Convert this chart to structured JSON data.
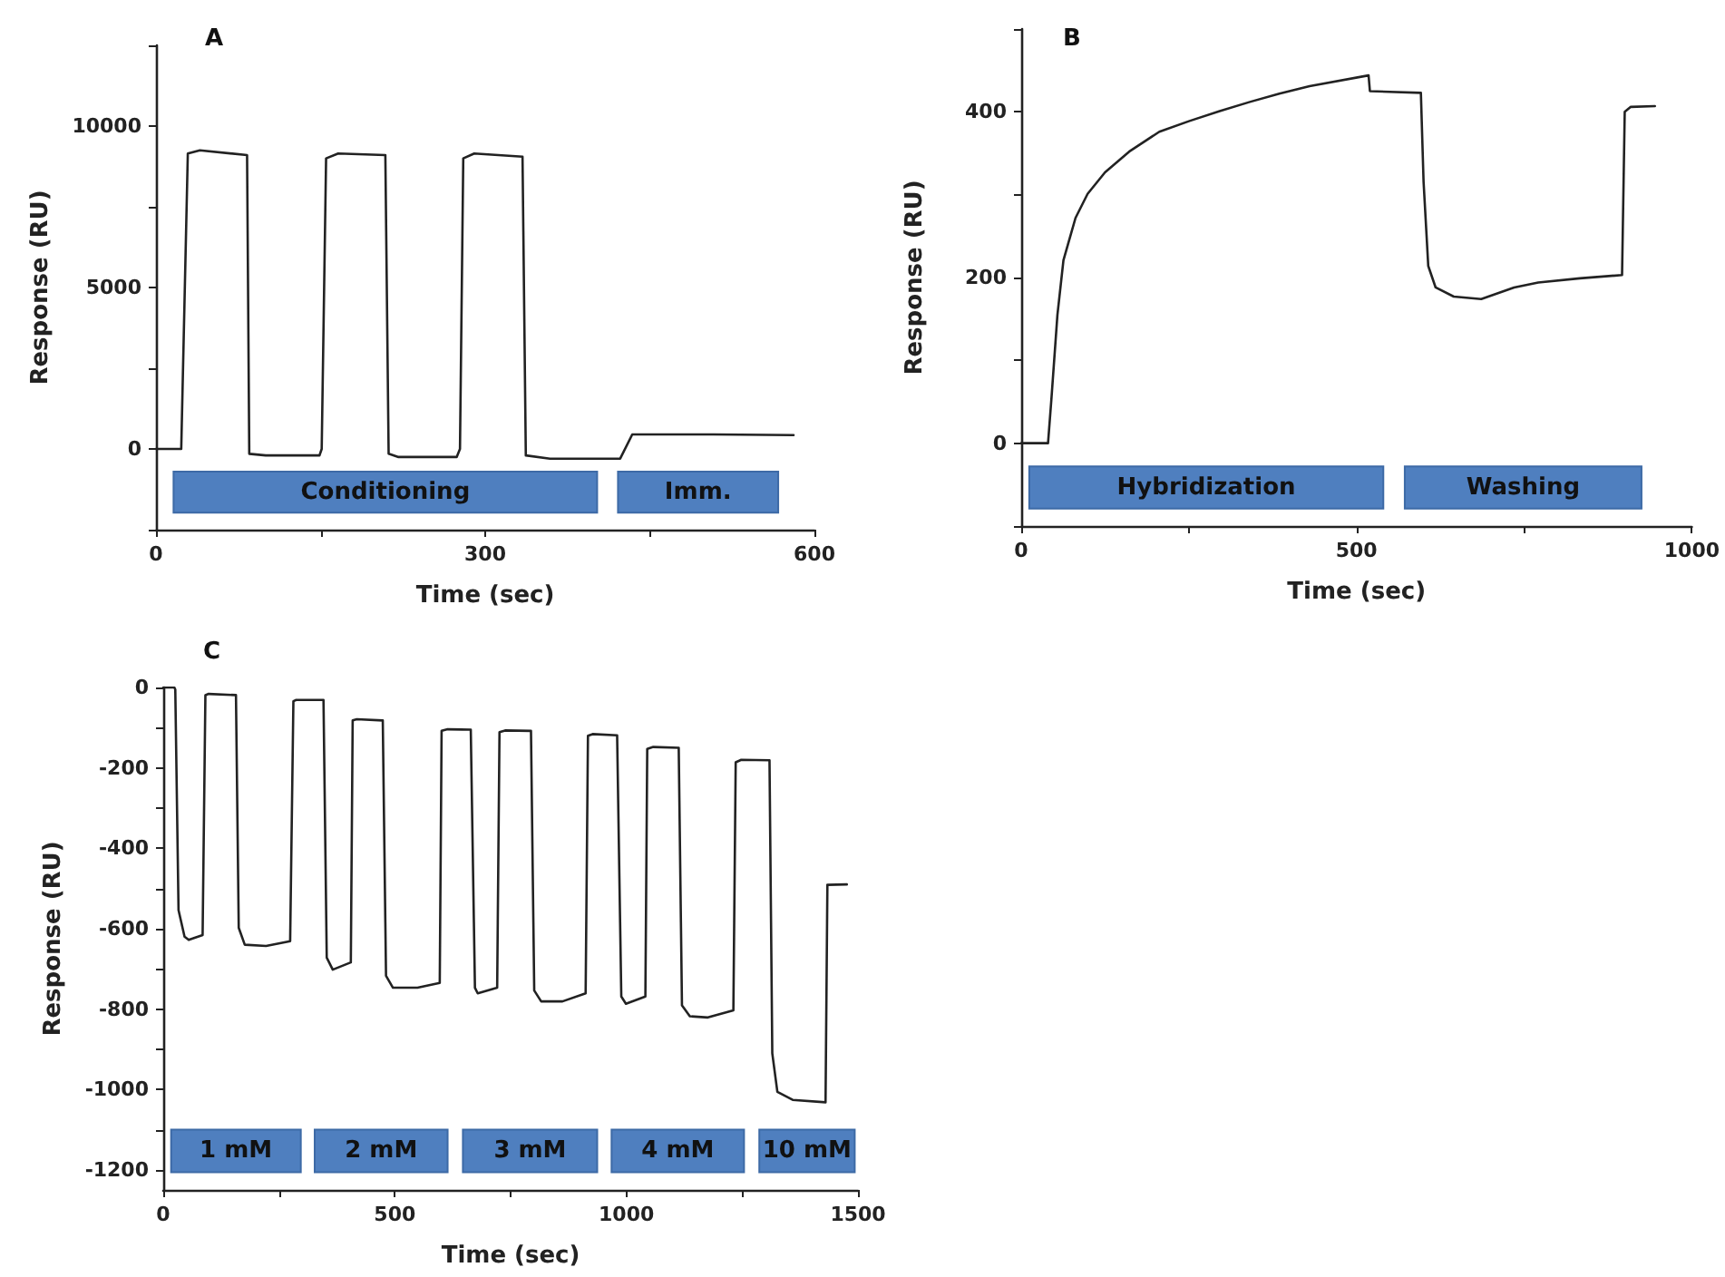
{
  "chart_data": [
    {
      "type": "line",
      "title": "A",
      "xlabel": "Time (sec)",
      "ylabel": "Response (RU)",
      "xlim": [
        0,
        600
      ],
      "xticks": [
        0,
        {
          "value": 150,
          "label": null
        },
        300,
        {
          "value": 450,
          "label": null
        },
        600
      ],
      "ylim": [
        -2500,
        12500
      ],
      "yticks": [
        {
          "value": -2500,
          "label": null
        },
        0,
        {
          "value": 2500,
          "label": null
        },
        5000,
        {
          "value": 7500,
          "label": null
        },
        10000,
        {
          "value": 12500,
          "label": null
        }
      ],
      "grid": false,
      "marker": "none",
      "line_style": "solid",
      "color": "#222222",
      "x": [
        0,
        23,
        29,
        40,
        83,
        85,
        100,
        149,
        151,
        155,
        166,
        209,
        212,
        221,
        274,
        277,
        280,
        290,
        334,
        337,
        359,
        423,
        434,
        508,
        581
      ],
      "values": [
        0,
        0,
        9150,
        9250,
        9100,
        -150,
        -200,
        -200,
        0,
        9000,
        9150,
        9100,
        -150,
        -250,
        -250,
        0,
        9000,
        9150,
        9050,
        -200,
        -300,
        -300,
        450,
        450,
        430
      ],
      "bands": [
        {
          "axis": "x",
          "from": 16,
          "to": 402,
          "label": "Conditioning",
          "color": "#4f7fbf"
        },
        {
          "axis": "x",
          "from": 421,
          "to": 567,
          "label": "Imm.",
          "color": "#4f7fbf"
        }
      ]
    },
    {
      "type": "line",
      "title": "B",
      "xlabel": "Time (sec)",
      "ylabel": "Response (RU)",
      "xlim": [
        0,
        1000
      ],
      "xticks": [
        0,
        {
          "value": 250,
          "label": null
        },
        500,
        {
          "value": 750,
          "label": null
        },
        1000
      ],
      "ylim": [
        -100,
        500
      ],
      "yticks": [
        {
          "value": -100,
          "label": null
        },
        0,
        {
          "value": 100,
          "label": null
        },
        200,
        {
          "value": 300,
          "label": null
        },
        400,
        {
          "value": 500,
          "label": null
        }
      ],
      "grid": false,
      "marker": "none",
      "line_style": "solid",
      "color": "#222222",
      "x": [
        0,
        40,
        45,
        54,
        63,
        81,
        99,
        125,
        161,
        206,
        251,
        296,
        341,
        385,
        430,
        518,
        520,
        596,
        600,
        607,
        618,
        645,
        686,
        735,
        771,
        833,
        896,
        900,
        909,
        945
      ],
      "values": [
        0,
        0,
        53,
        155,
        221,
        272,
        301,
        327,
        352,
        376,
        389,
        401,
        412,
        422,
        431,
        444,
        425,
        423,
        316,
        214,
        188,
        177,
        174,
        188,
        194,
        199,
        203,
        400,
        406,
        407
      ],
      "bands": [
        {
          "axis": "x",
          "from": 12,
          "to": 540,
          "label": "Hybridization",
          "color": "#4f7fbf"
        },
        {
          "axis": "x",
          "from": 572,
          "to": 925,
          "label": "Washing",
          "color": "#4f7fbf"
        }
      ]
    },
    {
      "type": "line",
      "title": "C",
      "xlabel": "Time (sec)",
      "ylabel": "Response (RU)",
      "xlim": [
        0,
        1500
      ],
      "xticks": [
        0,
        {
          "value": 250,
          "label": null
        },
        500,
        {
          "value": 750,
          "label": null
        },
        1000,
        {
          "value": 1250,
          "label": null
        },
        1500
      ],
      "ylim": [
        -1250,
        0
      ],
      "yticks": [
        -1200,
        {
          "value": -1100,
          "label": null
        },
        -1000,
        {
          "value": -900,
          "label": null
        },
        -800,
        {
          "value": -700,
          "label": null
        },
        -600,
        {
          "value": -500,
          "label": null
        },
        -400,
        {
          "value": -300,
          "label": null
        },
        -200,
        {
          "value": -100,
          "label": null
        },
        0
      ],
      "grid": false,
      "marker": "none",
      "line_style": "solid",
      "color": "#222222",
      "x": [
        0,
        24,
        26,
        33,
        46,
        55,
        85,
        91,
        98,
        157,
        163,
        176,
        222,
        274,
        281,
        287,
        346,
        353,
        366,
        405,
        409,
        418,
        474,
        481,
        496,
        549,
        597,
        601,
        614,
        664,
        673,
        679,
        721,
        726,
        738,
        794,
        801,
        816,
        862,
        912,
        917,
        927,
        980,
        989,
        999,
        1041,
        1045,
        1058,
        1113,
        1120,
        1137,
        1176,
        1231,
        1236,
        1248,
        1309,
        1315,
        1326,
        1359,
        1430,
        1434,
        1476
      ],
      "values": [
        0,
        0,
        -5,
        -554,
        -620,
        -628,
        -616,
        -19,
        -16,
        -19,
        -598,
        -640,
        -643,
        -631,
        -34,
        -31,
        -31,
        -672,
        -702,
        -684,
        -82,
        -79,
        -82,
        -717,
        -747,
        -747,
        -735,
        -108,
        -104,
        -105,
        -747,
        -761,
        -747,
        -111,
        -107,
        -108,
        -754,
        -781,
        -781,
        -761,
        -120,
        -116,
        -119,
        -769,
        -787,
        -769,
        -153,
        -148,
        -150,
        -791,
        -818,
        -821,
        -803,
        -186,
        -180,
        -181,
        -910,
        -1006,
        -1026,
        -1032,
        -491,
        -490
      ],
      "bands": [
        {
          "axis": "x",
          "from": 17,
          "to": 297,
          "label": "1 mM",
          "color": "#4f7fbf"
        },
        {
          "axis": "x",
          "from": 327,
          "to": 614,
          "label": "2 mM",
          "color": "#4f7fbf"
        },
        {
          "axis": "x",
          "from": 647,
          "to": 937,
          "label": "3 mM",
          "color": "#4f7fbf"
        },
        {
          "axis": "x",
          "from": 968,
          "to": 1254,
          "label": "4 mM",
          "color": "#4f7fbf"
        },
        {
          "axis": "x",
          "from": 1287,
          "to": 1493,
          "label": "10 mM",
          "color": "#4f7fbf"
        }
      ]
    }
  ]
}
